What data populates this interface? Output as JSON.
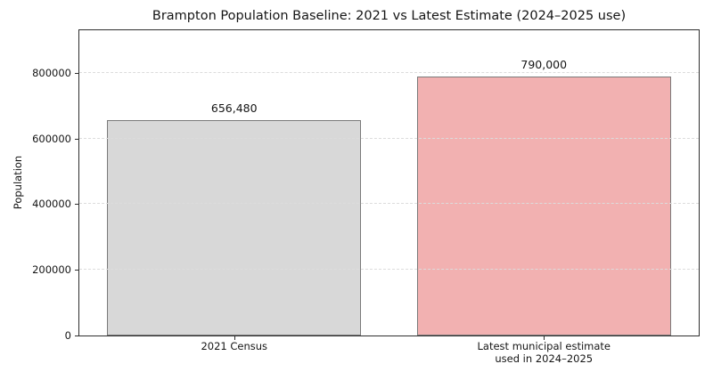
{
  "chart_data": {
    "type": "bar",
    "title": "Brampton Population Baseline: 2021 vs Latest Estimate (2024–2025 use)",
    "xlabel": "",
    "ylabel": "Population",
    "categories": [
      "2021 Census",
      "Latest municipal estimate\nused in 2024–2025"
    ],
    "values": [
      656480,
      790000
    ],
    "value_labels": [
      "656,480",
      "790,000"
    ],
    "yticks": [
      0,
      200000,
      400000,
      600000,
      800000
    ],
    "ytick_labels": [
      "0",
      "200000",
      "400000",
      "600000",
      "800000"
    ],
    "ylim": [
      0,
      930000
    ],
    "grid": "horizontal-dashed-over-bars",
    "legend": "none",
    "bar_width_fraction": 0.82,
    "bar_colors": [
      "#d8d8d8",
      "#f2b1b1"
    ],
    "bar_edge_color": "#7a7a7a"
  },
  "colors": {
    "background": "#ffffff",
    "spine": "#2e2e2e",
    "grid": "#dcdcdc",
    "text": "#151515"
  }
}
